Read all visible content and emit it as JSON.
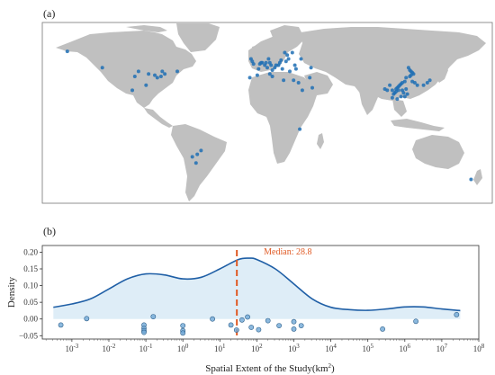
{
  "panel_a": {
    "label": "(a)",
    "land_color": "#c0c0c0",
    "point_color": "#1f6fb4",
    "points_lonlat": [
      [
        -150,
        61
      ],
      [
        -122,
        48
      ],
      [
        -96,
        41
      ],
      [
        -85,
        43
      ],
      [
        -80,
        42
      ],
      [
        -78,
        40
      ],
      [
        -75,
        41
      ],
      [
        -72,
        43
      ],
      [
        -74,
        45
      ],
      [
        -62,
        45
      ],
      [
        -98,
        30
      ],
      [
        -87,
        34
      ],
      [
        -93,
        45
      ],
      [
        -3,
        55
      ],
      [
        -2,
        53
      ],
      [
        -1,
        51
      ],
      [
        4,
        51
      ],
      [
        5,
        52
      ],
      [
        6,
        52
      ],
      [
        8,
        50
      ],
      [
        9,
        52
      ],
      [
        10,
        48
      ],
      [
        11,
        55
      ],
      [
        12,
        52
      ],
      [
        13,
        50
      ],
      [
        14,
        46
      ],
      [
        16,
        48
      ],
      [
        17,
        50
      ],
      [
        19,
        50
      ],
      [
        20,
        52
      ],
      [
        21,
        54
      ],
      [
        22,
        47
      ],
      [
        24,
        60
      ],
      [
        26,
        58
      ],
      [
        27,
        55
      ],
      [
        30,
        60
      ],
      [
        25,
        53
      ],
      [
        3,
        47
      ],
      [
        -4,
        40
      ],
      [
        2,
        42
      ],
      [
        12,
        43
      ],
      [
        14,
        41
      ],
      [
        23,
        38
      ],
      [
        28,
        45
      ],
      [
        32,
        50
      ],
      [
        37,
        55
      ],
      [
        44,
        40
      ],
      [
        35,
        36
      ],
      [
        33,
        47
      ],
      [
        38,
        30
      ],
      [
        46,
        32
      ],
      [
        45,
        48
      ],
      [
        31,
        38
      ],
      [
        123,
        48
      ],
      [
        124,
        46
      ],
      [
        125,
        45
      ],
      [
        126,
        44
      ],
      [
        127,
        43
      ],
      [
        125,
        42
      ],
      [
        124,
        41
      ],
      [
        121,
        40
      ],
      [
        120,
        37
      ],
      [
        118,
        36
      ],
      [
        117,
        35
      ],
      [
        116,
        34
      ],
      [
        115,
        33
      ],
      [
        114,
        32
      ],
      [
        113,
        31
      ],
      [
        113,
        29
      ],
      [
        112,
        28
      ],
      [
        115,
        30
      ],
      [
        118,
        30
      ],
      [
        119,
        28
      ],
      [
        120,
        25
      ],
      [
        111,
        27
      ],
      [
        110,
        30
      ],
      [
        108,
        34
      ],
      [
        106,
        30
      ],
      [
        104,
        31
      ],
      [
        110,
        24
      ],
      [
        114,
        23
      ],
      [
        117,
        25
      ],
      [
        121,
        31
      ],
      [
        122,
        27
      ],
      [
        126,
        37
      ],
      [
        128,
        36
      ],
      [
        130,
        34
      ],
      [
        138,
        36
      ],
      [
        140,
        38
      ],
      [
        135,
        34
      ],
      [
        36,
        -1
      ],
      [
        -46,
        -21
      ],
      [
        -50,
        -23
      ],
      [
        -47,
        -28
      ],
      [
        -43,
        -18
      ],
      [
        173,
        -41
      ]
    ]
  },
  "panel_b": {
    "label": "(b)",
    "median_label": "Median: 28.8",
    "median_color": "#e05a24",
    "curve_color": "#1f5fa6",
    "fill_color": "#deedf7"
  },
  "chart_data": {
    "type": "kde-with-strip",
    "xlabel": "Spatial Extent of the Study(km",
    "xlabel_sup": "2",
    "ylabel": "Density",
    "x_scale": "log10",
    "xlim_exponent": [
      -3.8,
      8
    ],
    "ylim": [
      -0.06,
      0.22
    ],
    "x_tick_exponents": [
      -3,
      -2,
      -1,
      0,
      1,
      2,
      3,
      4,
      5,
      6,
      7,
      8
    ],
    "y_ticks": [
      -0.05,
      0.0,
      0.05,
      0.1,
      0.15,
      0.2
    ],
    "y_tick_labels": [
      "−0.05",
      "0.00",
      "0.05",
      "0.10",
      "0.15",
      "0.20"
    ],
    "median": 28.8,
    "density_curve": {
      "log10_x": [
        -3.5,
        -3.0,
        -2.5,
        -2.0,
        -1.5,
        -1.0,
        -0.5,
        0.0,
        0.5,
        1.0,
        1.5,
        1.8,
        2.0,
        2.5,
        3.0,
        3.5,
        4.0,
        4.5,
        5.0,
        5.5,
        6.0,
        6.5,
        7.0,
        7.5
      ],
      "density": [
        0.035,
        0.045,
        0.06,
        0.09,
        0.12,
        0.135,
        0.132,
        0.12,
        0.125,
        0.15,
        0.178,
        0.182,
        0.178,
        0.15,
        0.105,
        0.06,
        0.035,
        0.028,
        0.026,
        0.03,
        0.036,
        0.036,
        0.03,
        0.025
      ]
    },
    "points": [
      {
        "log10_x": -3.3,
        "y": -0.018
      },
      {
        "log10_x": -2.6,
        "y": 0.001
      },
      {
        "log10_x": -1.05,
        "y": -0.018
      },
      {
        "log10_x": -1.05,
        "y": -0.028
      },
      {
        "log10_x": -1.05,
        "y": -0.035
      },
      {
        "log10_x": -1.05,
        "y": -0.04
      },
      {
        "log10_x": -0.8,
        "y": 0.007
      },
      {
        "log10_x": 0.0,
        "y": -0.02
      },
      {
        "log10_x": 0.0,
        "y": -0.035
      },
      {
        "log10_x": 0.0,
        "y": -0.042
      },
      {
        "log10_x": 0.8,
        "y": 0.0
      },
      {
        "log10_x": 1.3,
        "y": -0.018
      },
      {
        "log10_x": 1.6,
        "y": -0.003
      },
      {
        "log10_x": 1.45,
        "y": -0.033
      },
      {
        "log10_x": 1.75,
        "y": 0.006
      },
      {
        "log10_x": 1.85,
        "y": -0.025
      },
      {
        "log10_x": 2.05,
        "y": -0.032
      },
      {
        "log10_x": 2.3,
        "y": -0.005
      },
      {
        "log10_x": 2.6,
        "y": -0.02
      },
      {
        "log10_x": 3.0,
        "y": -0.008
      },
      {
        "log10_x": 3.0,
        "y": -0.03
      },
      {
        "log10_x": 3.2,
        "y": -0.02
      },
      {
        "log10_x": 5.4,
        "y": -0.03
      },
      {
        "log10_x": 6.3,
        "y": -0.007
      },
      {
        "log10_x": 7.4,
        "y": 0.013
      }
    ]
  }
}
